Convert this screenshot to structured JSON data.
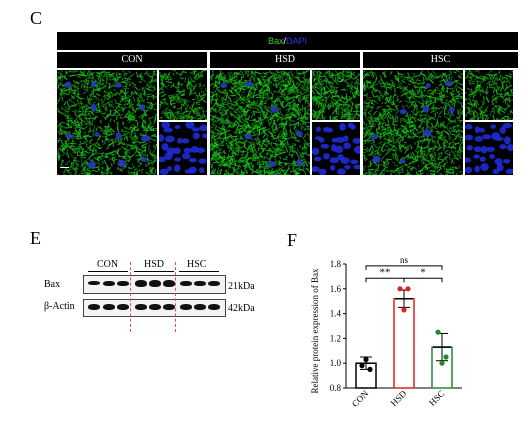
{
  "panel_c": {
    "letter": "C",
    "title_bax": "Bax",
    "title_sep": "/",
    "title_dapi": "DAPI",
    "groups": [
      "CON",
      "HSD",
      "HSC"
    ]
  },
  "panel_e": {
    "letter": "E",
    "groups": [
      "CON",
      "HSD",
      "HSC"
    ],
    "rows": [
      {
        "label": "Bax",
        "size": "21kDa"
      },
      {
        "label": "β-Actin",
        "size": "42kDa"
      }
    ]
  },
  "panel_f": {
    "letter": "F"
  },
  "chart_data": {
    "type": "bar",
    "categories": [
      "CON",
      "HSD",
      "HSC"
    ],
    "values": [
      1.0,
      1.52,
      1.13
    ],
    "errors": [
      0.05,
      0.07,
      0.11
    ],
    "points": [
      [
        0.98,
        0.95,
        1.03
      ],
      [
        1.6,
        1.6,
        1.43
      ],
      [
        1.25,
        1.05,
        1.0
      ]
    ],
    "colors": [
      "#000000",
      "#e02020",
      "#1e8a2a"
    ],
    "ylabel": "Relative protein expression of Bax",
    "ylim": [
      0.8,
      1.8
    ],
    "yticks": [
      "0.8",
      "1.0",
      "1.2",
      "1.4",
      "1.6",
      "1.8"
    ],
    "significance": [
      {
        "from": 0,
        "to": 1,
        "label": "**"
      },
      {
        "from": 1,
        "to": 2,
        "label": "*"
      },
      {
        "from": 0,
        "to": 2,
        "label": "ns"
      }
    ]
  }
}
